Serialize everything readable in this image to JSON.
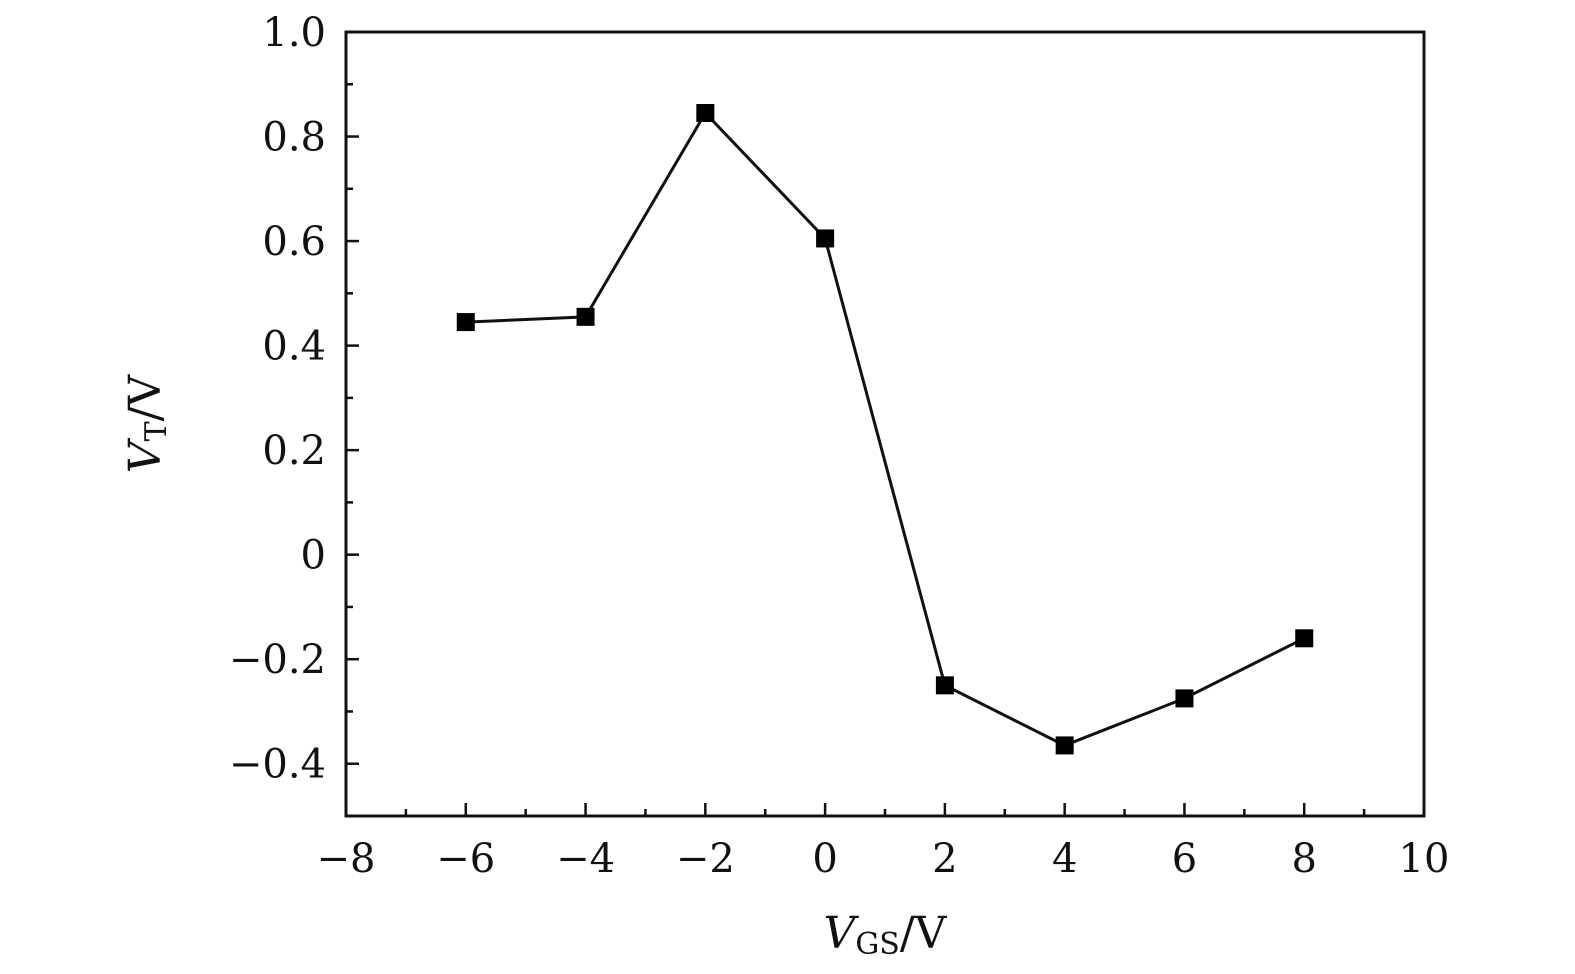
{
  "chart_data": {
    "type": "line",
    "xlabel": {
      "main": "V",
      "sub": "GS",
      "unit": "/V"
    },
    "ylabel": {
      "main": "V",
      "sub": "T",
      "unit": "/V"
    },
    "xlim": [
      -8,
      10
    ],
    "ylim": [
      -0.5,
      1.0
    ],
    "x_ticks": [
      -8,
      -6,
      -4,
      -2,
      0,
      2,
      4,
      6,
      8,
      10
    ],
    "x_tick_labels": [
      "−8",
      "−6",
      "−4",
      "−2",
      "0",
      "2",
      "4",
      "6",
      "8",
      "10"
    ],
    "x_minor_step": 1,
    "y_ticks": [
      -0.4,
      -0.2,
      0,
      0.2,
      0.4,
      0.6,
      0.8,
      1.0
    ],
    "y_tick_labels": [
      "−0.4",
      "−0.2",
      "0",
      "0.2",
      "0.4",
      "0.6",
      "0.8",
      "1.0"
    ],
    "y_minor_step": 0.1,
    "grid": false,
    "marker": "filled-square",
    "series": [
      {
        "x": [
          -6,
          -4,
          -2,
          0,
          2,
          4,
          6,
          8
        ],
        "y": [
          0.445,
          0.455,
          0.845,
          0.605,
          -0.25,
          -0.365,
          -0.275,
          -0.16
        ]
      }
    ]
  }
}
